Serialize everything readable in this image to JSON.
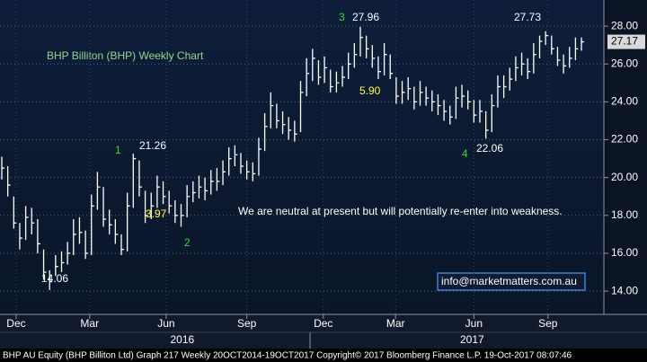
{
  "chart_data": {
    "type": "hlc",
    "color": "#ffffff",
    "grid": true,
    "ylim": [
      12.77,
      29.38
    ],
    "yticks": [
      {
        "value": 14,
        "label": "14.00"
      },
      {
        "value": 16,
        "label": "16.00"
      },
      {
        "value": 18,
        "label": "18.00"
      },
      {
        "value": 20,
        "label": "20.00"
      },
      {
        "value": 22,
        "label": "22.00"
      },
      {
        "value": 24,
        "label": "24.00"
      },
      {
        "value": 26,
        "label": "26.00"
      },
      {
        "value": 28,
        "label": "28.00"
      }
    ],
    "xticks": [
      {
        "value": 2.4,
        "label": "Dec"
      },
      {
        "value": 14.7,
        "label": "Mar"
      },
      {
        "value": 27.5,
        "label": "Jun"
      },
      {
        "value": 41,
        "label": "Sep"
      },
      {
        "value": 53.8,
        "label": "Dec"
      },
      {
        "value": 65.9,
        "label": "Mar"
      },
      {
        "value": 79,
        "label": "Jun"
      },
      {
        "value": 91.4,
        "label": "Sep"
      }
    ],
    "years": [
      {
        "value": 30.2,
        "label": "2016"
      },
      {
        "value": 78.7,
        "label": "2017"
      }
    ],
    "high": [
      21.1,
      20.6,
      19.0,
      17.6,
      18.5,
      18.4,
      17.8,
      16.2,
      15.1,
      15.9,
      16.1,
      16.6,
      17.8,
      17.9,
      17.2,
      19.1,
      20.3,
      19.5,
      18.3,
      17.8,
      17.0,
      19.2,
      21.26,
      20.9,
      19.3,
      19.2,
      20.1,
      19.8,
      19.3,
      18.8,
      18.6,
      19.6,
      19.8,
      20.1,
      20.0,
      20.4,
      20.5,
      20.9,
      21.6,
      21.7,
      21.3,
      20.9,
      20.8,
      22.1,
      23.4,
      24.5,
      23.9,
      23.5,
      23.2,
      23.0,
      25.1,
      26.3,
      26.8,
      26.2,
      26.4,
      25.7,
      25.6,
      25.9,
      26.6,
      27.1,
      27.96,
      27.5,
      27.0,
      26.4,
      27.1,
      26.5,
      25.3,
      25.1,
      25.3,
      24.8,
      25.1,
      24.8,
      24.6,
      24.4,
      24.1,
      23.8,
      24.8,
      24.9,
      24.6,
      24.1,
      24.1,
      23.5,
      24.4,
      25.4,
      25.4,
      25.8,
      26.4,
      26.6,
      26.3,
      27.1,
      27.5,
      27.73,
      27.5,
      26.9,
      26.5,
      26.9,
      27.4,
      27.4
    ],
    "low": [
      19.9,
      19.0,
      17.3,
      16.2,
      16.7,
      17.0,
      16.0,
      14.6,
      14.06,
      14.8,
      15.0,
      15.4,
      15.9,
      16.5,
      15.7,
      15.9,
      18.3,
      17.4,
      17.0,
      16.5,
      15.9,
      16.1,
      18.4,
      19.0,
      17.6,
      17.8,
      18.4,
      18.6,
      18.1,
      17.6,
      17.4,
      17.9,
      18.7,
      18.9,
      18.8,
      19.1,
      19.3,
      19.6,
      20.1,
      20.6,
      20.2,
      19.9,
      19.8,
      20.1,
      21.4,
      22.6,
      22.6,
      22.3,
      22.0,
      21.9,
      22.4,
      24.3,
      25.1,
      24.9,
      25.0,
      24.5,
      24.5,
      24.8,
      25.2,
      25.8,
      26.4,
      26.3,
      25.8,
      25.2,
      25.4,
      25.2,
      23.9,
      23.9,
      24.1,
      23.6,
      23.8,
      23.8,
      23.5,
      23.3,
      23.0,
      22.8,
      23.1,
      23.7,
      23.6,
      22.9,
      22.9,
      22.06,
      22.4,
      23.7,
      24.2,
      24.6,
      25.1,
      25.4,
      25.2,
      25.5,
      26.3,
      27.0,
      26.5,
      25.9,
      25.5,
      25.8,
      26.2,
      26.7
    ],
    "close": [
      20.5,
      19.6,
      17.6,
      16.8,
      17.9,
      17.6,
      16.5,
      15.0,
      14.5,
      15.3,
      15.5,
      16.0,
      17.0,
      17.1,
      16.0,
      18.5,
      19.5,
      17.8,
      17.5,
      17.0,
      16.2,
      18.5,
      21.0,
      19.5,
      18.0,
      18.5,
      19.5,
      19.0,
      18.5,
      18.0,
      18.0,
      19.0,
      19.2,
      19.5,
      19.3,
      19.8,
      19.8,
      20.3,
      21.0,
      21.2,
      20.6,
      20.3,
      20.2,
      21.5,
      22.7,
      23.8,
      23.0,
      22.8,
      22.5,
      22.3,
      24.5,
      25.5,
      26.3,
      25.3,
      25.8,
      24.8,
      25.0,
      25.3,
      26.0,
      26.5,
      27.4,
      26.8,
      26.3,
      25.6,
      26.5,
      25.5,
      24.3,
      24.5,
      24.7,
      24.0,
      24.5,
      24.2,
      24.0,
      23.8,
      23.5,
      23.2,
      24.2,
      24.3,
      24.0,
      23.3,
      23.5,
      22.5,
      23.8,
      24.8,
      24.8,
      25.2,
      25.8,
      26.0,
      25.6,
      26.5,
      27.2,
      27.5,
      26.8,
      26.2,
      25.9,
      26.3,
      26.8,
      27.17
    ],
    "title": "BHP Billiton (BHP) Weekly Chart",
    "annotations": [
      {
        "text": "We are neutral at present but will potentially re-enter into weakness.",
        "color": "#ffffff"
      },
      {
        "text": "1",
        "color": "#33dd33"
      },
      {
        "text": "3.97",
        "color": "#ffff33"
      },
      {
        "text": "2",
        "color": "#33dd33"
      },
      {
        "text": "3",
        "color": "#33dd33"
      },
      {
        "text": "5.90",
        "color": "#ffff33"
      },
      {
        "text": "4",
        "color": "#33dd33"
      }
    ],
    "contact": "info@marketmatters.com.au",
    "footer": "BHP AU Equity (BHP Billiton Ltd) Graph 217  Weekly 20OCT2014-19OCT2017 Copyright© 2017 Bloomberg Finance L.P. 19-Oct-2017 08:07:46"
  }
}
